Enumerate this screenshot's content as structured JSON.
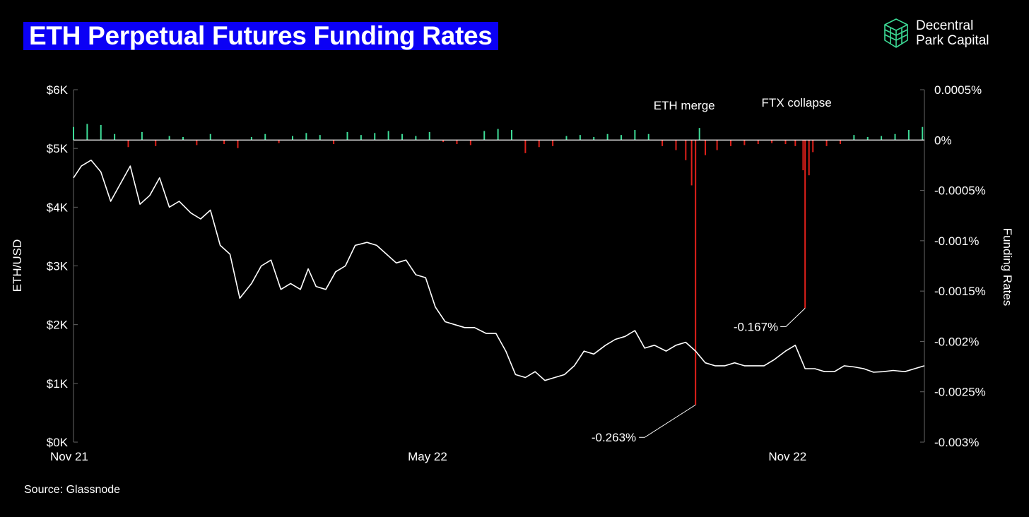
{
  "title": "ETH Perpetual Futures Funding Rates",
  "brand": {
    "line1": "Decentral",
    "line2": "Park Capital",
    "logo_icon": "cube-logo-icon",
    "logo_color": "#3ddc97"
  },
  "source": "Source: Glassnode",
  "colors": {
    "title_bg": "#0b00f5",
    "positive_bar": "#3ddc97",
    "negative_bar": "#e0201a",
    "price_line": "#ffffff",
    "background": "#000000"
  },
  "chart_data": {
    "type": "line",
    "x_ticks": [
      "Nov 21",
      "May 22",
      "Nov 22"
    ],
    "x_range": [
      "2021-11-01",
      "2023-01-10"
    ],
    "left_axis": {
      "label": "ETH/USD",
      "ticks": [
        "$6K",
        "$5K",
        "$4K",
        "$3K",
        "$2K",
        "$1K",
        "$0K"
      ],
      "range": [
        0,
        6000
      ]
    },
    "right_axis": {
      "label": "Funding Rates",
      "ticks": [
        "0.0005%",
        "0%",
        "-0.0005%",
        "-0.001%",
        "-0.0015%",
        "-0.002%",
        "-0.0025%",
        "-0.003%"
      ],
      "range": [
        -0.003,
        0.0005
      ]
    },
    "grid": false,
    "annotations": [
      {
        "text": "ETH merge",
        "date": "2022-09-15"
      },
      {
        "text": "FTX collapse",
        "date": "2022-11-10"
      },
      {
        "text": "-0.263%",
        "date": "2022-09-15",
        "value": -0.00263
      },
      {
        "text": "-0.167%",
        "date": "2022-11-10",
        "value": -0.00167
      }
    ],
    "series": [
      {
        "name": "ETH/USD",
        "type": "line",
        "x": [
          "2021-11-01",
          "2021-11-05",
          "2021-11-10",
          "2021-11-15",
          "2021-11-20",
          "2021-11-25",
          "2021-11-30",
          "2021-12-05",
          "2021-12-10",
          "2021-12-15",
          "2021-12-20",
          "2021-12-25",
          "2021-12-31",
          "2022-01-05",
          "2022-01-10",
          "2022-01-15",
          "2022-01-20",
          "2022-01-25",
          "2022-01-31",
          "2022-02-05",
          "2022-02-10",
          "2022-02-15",
          "2022-02-20",
          "2022-02-25",
          "2022-03-01",
          "2022-03-05",
          "2022-03-10",
          "2022-03-15",
          "2022-03-20",
          "2022-03-25",
          "2022-03-31",
          "2022-04-05",
          "2022-04-10",
          "2022-04-15",
          "2022-04-20",
          "2022-04-25",
          "2022-04-30",
          "2022-05-05",
          "2022-05-10",
          "2022-05-15",
          "2022-05-20",
          "2022-05-25",
          "2022-05-31",
          "2022-06-05",
          "2022-06-10",
          "2022-06-15",
          "2022-06-20",
          "2022-06-25",
          "2022-06-30",
          "2022-07-05",
          "2022-07-10",
          "2022-07-15",
          "2022-07-20",
          "2022-07-25",
          "2022-07-31",
          "2022-08-05",
          "2022-08-10",
          "2022-08-15",
          "2022-08-20",
          "2022-08-25",
          "2022-08-31",
          "2022-09-05",
          "2022-09-10",
          "2022-09-15",
          "2022-09-20",
          "2022-09-25",
          "2022-09-30",
          "2022-10-05",
          "2022-10-10",
          "2022-10-15",
          "2022-10-20",
          "2022-10-25",
          "2022-10-31",
          "2022-11-05",
          "2022-11-10",
          "2022-11-15",
          "2022-11-20",
          "2022-11-25",
          "2022-11-30",
          "2022-12-05",
          "2022-12-10",
          "2022-12-15",
          "2022-12-20",
          "2022-12-25",
          "2022-12-31",
          "2023-01-05",
          "2023-01-10"
        ],
        "values": [
          4500,
          4700,
          4800,
          4600,
          4100,
          4400,
          4700,
          4050,
          4200,
          4500,
          4000,
          4100,
          3900,
          3800,
          3950,
          3350,
          3200,
          2450,
          2700,
          3000,
          3100,
          2600,
          2700,
          2600,
          2950,
          2650,
          2600,
          2900,
          3000,
          3350,
          3400,
          3350,
          3200,
          3050,
          3100,
          2850,
          2800,
          2300,
          2050,
          2000,
          1950,
          1950,
          1850,
          1850,
          1550,
          1150,
          1100,
          1200,
          1050,
          1100,
          1150,
          1300,
          1550,
          1500,
          1650,
          1750,
          1800,
          1900,
          1600,
          1650,
          1550,
          1650,
          1700,
          1550,
          1350,
          1300,
          1300,
          1350,
          1300,
          1300,
          1300,
          1400,
          1550,
          1650,
          1250,
          1250,
          1200,
          1200,
          1300,
          1280,
          1250,
          1190,
          1200,
          1220,
          1200,
          1250,
          1300
        ]
      },
      {
        "name": "Funding Rates",
        "type": "bar",
        "x": [
          "2021-11-01",
          "2021-11-08",
          "2021-11-15",
          "2021-11-22",
          "2021-11-29",
          "2021-12-06",
          "2021-12-13",
          "2021-12-20",
          "2021-12-27",
          "2022-01-03",
          "2022-01-10",
          "2022-01-17",
          "2022-01-24",
          "2022-01-31",
          "2022-02-07",
          "2022-02-14",
          "2022-02-21",
          "2022-02-28",
          "2022-03-07",
          "2022-03-14",
          "2022-03-21",
          "2022-03-28",
          "2022-04-04",
          "2022-04-11",
          "2022-04-18",
          "2022-04-25",
          "2022-05-02",
          "2022-05-09",
          "2022-05-16",
          "2022-05-23",
          "2022-05-30",
          "2022-06-06",
          "2022-06-13",
          "2022-06-20",
          "2022-06-27",
          "2022-07-04",
          "2022-07-11",
          "2022-07-18",
          "2022-07-25",
          "2022-08-01",
          "2022-08-08",
          "2022-08-15",
          "2022-08-22",
          "2022-08-29",
          "2022-09-05",
          "2022-09-10",
          "2022-09-13",
          "2022-09-15",
          "2022-09-17",
          "2022-09-20",
          "2022-09-26",
          "2022-10-03",
          "2022-10-10",
          "2022-10-17",
          "2022-10-24",
          "2022-10-31",
          "2022-11-05",
          "2022-11-09",
          "2022-11-10",
          "2022-11-12",
          "2022-11-14",
          "2022-11-21",
          "2022-11-28",
          "2022-12-05",
          "2022-12-12",
          "2022-12-19",
          "2022-12-26",
          "2023-01-02",
          "2023-01-09"
        ],
        "values": [
          0.00013,
          0.00016,
          0.00015,
          6e-05,
          -7e-05,
          8e-05,
          -6e-05,
          4e-05,
          3e-05,
          -5e-05,
          6e-05,
          -4e-05,
          -8e-05,
          3e-05,
          6e-05,
          -3e-05,
          4e-05,
          7e-05,
          5e-05,
          -4e-05,
          8e-05,
          5e-05,
          7e-05,
          9e-05,
          6e-05,
          4e-05,
          8e-05,
          -2e-05,
          -4e-05,
          -5e-05,
          9e-05,
          0.00011,
          0.0001,
          -0.00013,
          -7e-05,
          -6e-05,
          4e-05,
          5e-05,
          3e-05,
          6e-05,
          5e-05,
          0.0001,
          6e-05,
          -6e-05,
          -0.0001,
          -0.0002,
          -0.00045,
          -0.00263,
          0.00012,
          -0.00015,
          -0.0001,
          -6e-05,
          -5e-05,
          -4e-05,
          -3e-05,
          -4e-05,
          -6e-05,
          -0.0003,
          -0.00167,
          -0.00035,
          -0.00012,
          -6e-05,
          -4e-05,
          5e-05,
          3e-05,
          4e-05,
          6e-05,
          0.0001,
          0.00013
        ]
      }
    ]
  }
}
